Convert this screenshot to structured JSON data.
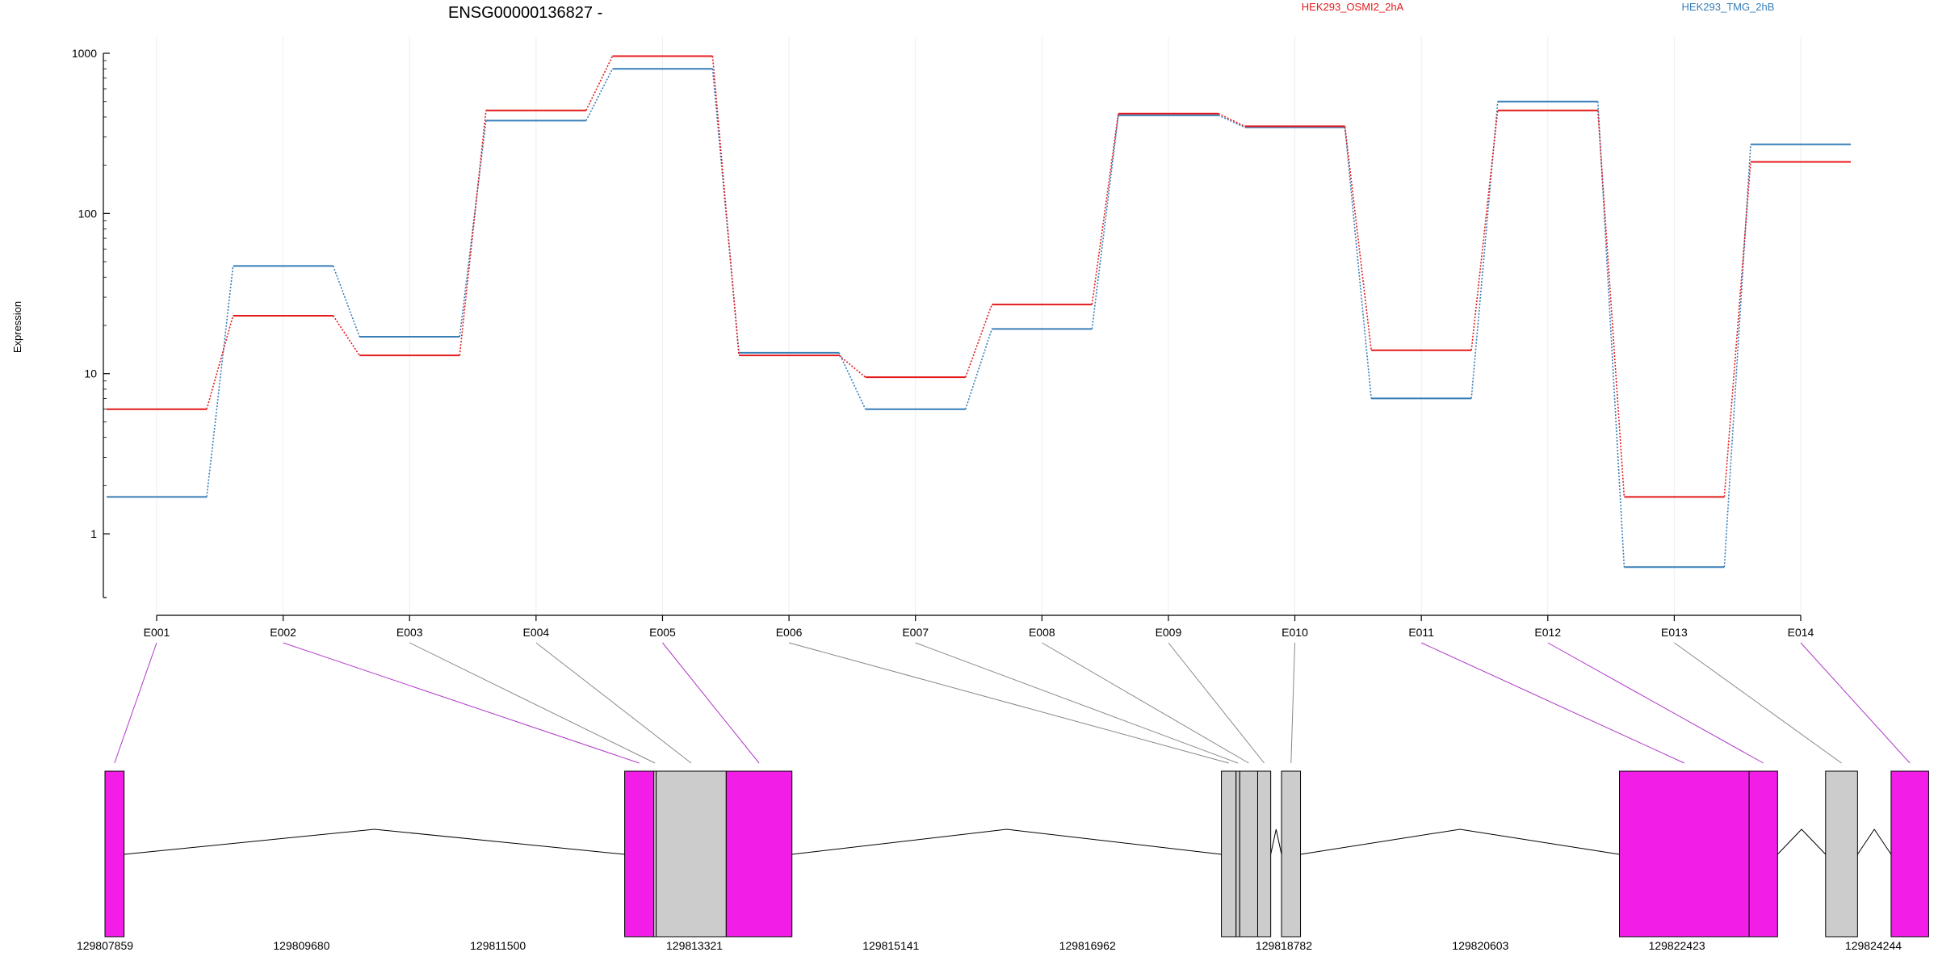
{
  "chart_data": {
    "type": "line",
    "title": "ENSG00000136827 -",
    "ylabel": "Expression",
    "y_scale": "log",
    "ylim": [
      0.4,
      1000
    ],
    "y_ticks": [
      {
        "value": 1,
        "label": "1"
      },
      {
        "value": 10,
        "label": "10"
      },
      {
        "value": 100,
        "label": "100"
      },
      {
        "value": 1000,
        "label": "1000"
      }
    ],
    "categories": [
      "E001",
      "E002",
      "E003",
      "E004",
      "E005",
      "E006",
      "E007",
      "E008",
      "E009",
      "E010",
      "E011",
      "E012",
      "E013",
      "E014"
    ],
    "series": [
      {
        "name": "HEK293_OSMI2_2hA",
        "color": "#e41a1c",
        "values": [
          6,
          23,
          13,
          440,
          960,
          13,
          9.5,
          27,
          420,
          350,
          14,
          440,
          1.7,
          210
        ]
      },
      {
        "name": "HEK293_TMG_2hB",
        "color": "#377eb8",
        "values": [
          1.7,
          47,
          17,
          380,
          800,
          13.5,
          6,
          19,
          410,
          345,
          7,
          500,
          0.62,
          270
        ]
      }
    ],
    "legend_position": "top",
    "grid": "vertical-light",
    "gene_model": {
      "genomic_ticks": [
        "129807859",
        "129809680",
        "129811500",
        "129813321",
        "129815141",
        "129816962",
        "129818782",
        "129820603",
        "129822423",
        "129824244"
      ],
      "genomic_range": [
        129807859,
        129824244
      ],
      "exons": [
        {
          "id": "E001",
          "start": 129807859,
          "end": 129808036,
          "highlighted": true
        },
        {
          "id": "E002",
          "start": 129812674,
          "end": 129812944,
          "highlighted": true
        },
        {
          "id": "E003",
          "start": 129812944,
          "end": 129812966,
          "highlighted": false
        },
        {
          "id": "E004",
          "start": 129812966,
          "end": 129813615,
          "highlighted": false
        },
        {
          "id": "E005",
          "start": 129813615,
          "end": 129814224,
          "highlighted": true
        },
        {
          "id": "E006",
          "start": 129818203,
          "end": 129818339,
          "highlighted": false
        },
        {
          "id": "E007",
          "start": 129818339,
          "end": 129818373,
          "highlighted": false
        },
        {
          "id": "E008",
          "start": 129818373,
          "end": 129818539,
          "highlighted": false
        },
        {
          "id": "E009",
          "start": 129818539,
          "end": 129818660,
          "highlighted": false
        },
        {
          "id": "E010",
          "start": 129818760,
          "end": 129818936,
          "highlighted": false
        },
        {
          "id": "E011",
          "start": 129821891,
          "end": 129823093,
          "highlighted": true
        },
        {
          "id": "E012",
          "start": 129823093,
          "end": 129823356,
          "highlighted": true
        },
        {
          "id": "E013",
          "start": 129823801,
          "end": 129824097,
          "highlighted": false
        },
        {
          "id": "E014",
          "start": 129824408,
          "end": 129824756,
          "highlighted": true
        }
      ],
      "colors": {
        "highlighted": "#f21ee8",
        "normal": "#cccccc",
        "connector_highlighted": "#b039c8",
        "connector_normal": "#888888"
      }
    }
  }
}
